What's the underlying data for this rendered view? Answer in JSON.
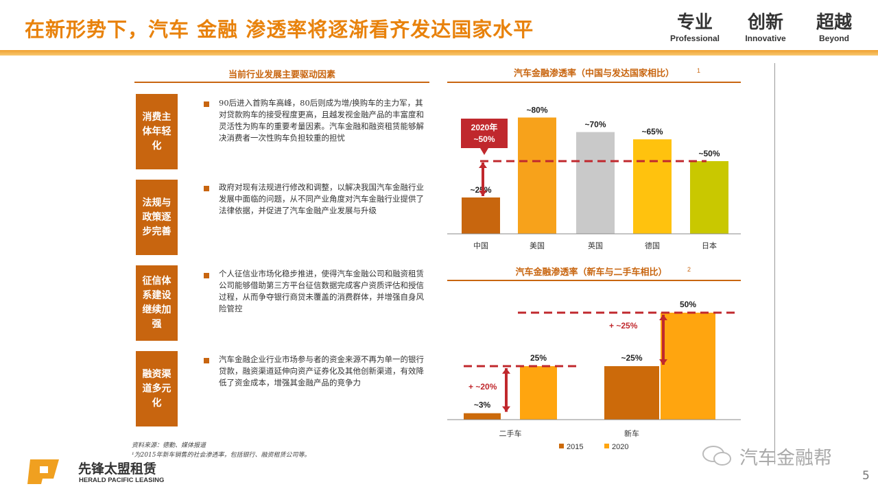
{
  "header": {
    "title": "在新形势下，汽车 金融 渗透率将逐渐看齐发达国家水平",
    "taglines": [
      {
        "cn": "专业",
        "en": "Professional"
      },
      {
        "cn": "创新",
        "en": "Innovative"
      },
      {
        "cn": "超越",
        "en": "Beyond"
      }
    ]
  },
  "drivers": {
    "title": "当前行业发展主要驱动因素",
    "items": [
      {
        "label": "消费主体年轻化",
        "text": "90后进入首购车高峰，80后则成为增/换购车的主力军，其对贷款购车的接受程度更高，且越发视金融产品的丰富度和灵活性为购车的重要考量因素。汽车金融和融资租赁能够解决消费者一次性购车负担较重的担忧"
      },
      {
        "label": "法规与政策逐步完善",
        "text": "政府对现有法规进行修改和调整，以解决我国汽车金融行业发展中面临的问题，从不同产业角度对汽车金融行业提供了法律依据，并促进了汽车金融产业发展与升级"
      },
      {
        "label": "征信体系建设继续加强",
        "text": "个人征信业市场化稳步推进，使得汽车金融公司和融资租赁公司能够借助第三方平台征信数据完成客户资质评估和授信过程，从而争夺银行商贷未覆盖的消费群体，并增强自身风险管控"
      },
      {
        "label": "融资渠道多元化",
        "text": "汽车金融企业行业市场参与者的资金来源不再为单一的银行贷款，融资渠道延伸向资产证券化及其他创新渠道，有效降低了资金成本，增强其金融产品的竞争力"
      }
    ]
  },
  "notes": {
    "source": "资料来源：德勤、媒体报道",
    "footnote": "¹为2015年新车销售的社会渗透率，包括银行、融资租赁公司等。"
  },
  "logo": {
    "cn": "先锋太盟租赁",
    "en": "HERALD PACIFIC LEASING"
  },
  "watermark": "汽车金融帮",
  "page_number": "5",
  "chart_data": [
    {
      "type": "bar",
      "title": "汽车金融渗透率（中国与发达国家相比）",
      "title_sup": "1",
      "categories": [
        "中国",
        "美国",
        "英国",
        "德国",
        "日本"
      ],
      "values": [
        25,
        80,
        70,
        65,
        50
      ],
      "data_labels": [
        "~25%",
        "~80%",
        "~70%",
        "~65%",
        "~50%"
      ],
      "colors": [
        "#C8660E",
        "#F7A21B",
        "#C9C9C9",
        "#FFC20E",
        "#C9C800"
      ],
      "reference_line": {
        "value": 50,
        "color": "#C0282D"
      },
      "callout": "2020年\n~50%",
      "ylim": [
        0,
        85
      ]
    },
    {
      "type": "bar",
      "title": "汽车金融渗透率（新车与二手车相比）",
      "title_sup": "2",
      "categories": [
        "二手车",
        "新车"
      ],
      "series": [
        {
          "name": "2015",
          "values": [
            3,
            25
          ],
          "labels": [
            "~3%",
            "~25%"
          ],
          "color": "#CC6A0A"
        },
        {
          "name": "2020",
          "values": [
            25,
            50
          ],
          "labels": [
            "25%",
            "50%"
          ],
          "color": "#FFA50F"
        }
      ],
      "increments": [
        "+ ~20%",
        "+ ~25%"
      ],
      "ylim": [
        0,
        52
      ],
      "legend": "bottom"
    }
  ]
}
